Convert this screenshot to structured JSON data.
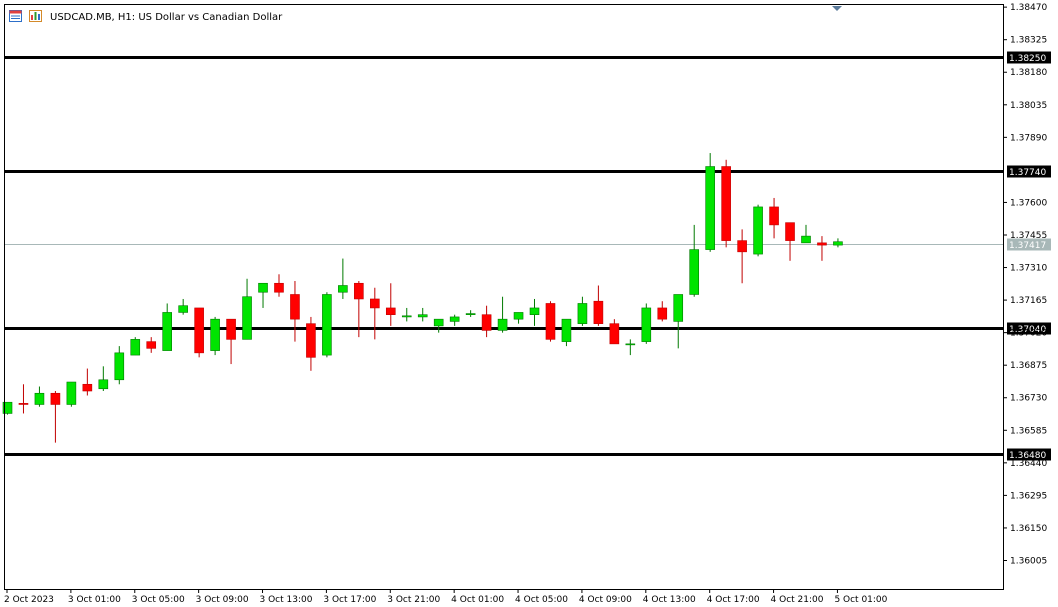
{
  "header": {
    "symbol_text": "USDCAD.MB, H1:  US Dollar vs Canadian Dollar"
  },
  "colors": {
    "bull": "#00e400",
    "bear": "#ff0000",
    "bull_wick": "#007a00",
    "bear_wick": "#c00000",
    "axis": "#000000",
    "current_line": "#a8b8b8",
    "level_line": "#000000"
  },
  "chart_data": {
    "type": "candlestick",
    "symbol": "USDCAD.MB",
    "timeframe": "H1",
    "description": "US Dollar vs Canadian Dollar",
    "ylim": [
      1.35878,
      1.38484
    ],
    "y_ticks": [
      "1.38470",
      "1.38325",
      "1.38180",
      "1.38035",
      "1.37890",
      "1.37600",
      "1.37455",
      "1.37310",
      "1.37165",
      "1.37020",
      "1.36875",
      "1.36730",
      "1.36585",
      "1.36440",
      "1.36295",
      "1.36150",
      "1.36005"
    ],
    "x_ticks": [
      {
        "label": "2 Oct 2023",
        "bar": 0
      },
      {
        "label": "3 Oct 01:00",
        "bar": 4
      },
      {
        "label": "3 Oct 05:00",
        "bar": 8
      },
      {
        "label": "3 Oct 09:00",
        "bar": 12
      },
      {
        "label": "3 Oct 13:00",
        "bar": 16
      },
      {
        "label": "3 Oct 17:00",
        "bar": 20
      },
      {
        "label": "3 Oct 21:00",
        "bar": 24
      },
      {
        "label": "4 Oct 01:00",
        "bar": 28
      },
      {
        "label": "4 Oct 05:00",
        "bar": 32
      },
      {
        "label": "4 Oct 09:00",
        "bar": 36
      },
      {
        "label": "4 Oct 13:00",
        "bar": 40
      },
      {
        "label": "4 Oct 17:00",
        "bar": 44
      },
      {
        "label": "4 Oct 21:00",
        "bar": 48
      },
      {
        "label": "5 Oct 01:00",
        "bar": 52
      }
    ],
    "levels": [
      {
        "price": 1.3825,
        "label": "1.38250"
      },
      {
        "price": 1.3774,
        "label": "1.37740"
      },
      {
        "price": 1.3704,
        "label": "1.37040"
      },
      {
        "price": 1.3648,
        "label": "1.36480"
      }
    ],
    "current_price": {
      "price": 1.37417,
      "label": "1.37417"
    },
    "candles": [
      {
        "o": 1.3666,
        "h": 1.367,
        "l": 1.36655,
        "c": 1.3671
      },
      {
        "o": 1.36705,
        "h": 1.3679,
        "l": 1.3666,
        "c": 1.367
      },
      {
        "o": 1.367,
        "h": 1.3678,
        "l": 1.3669,
        "c": 1.3675
      },
      {
        "o": 1.3675,
        "h": 1.3676,
        "l": 1.3653,
        "c": 1.367
      },
      {
        "o": 1.367,
        "h": 1.368,
        "l": 1.3669,
        "c": 1.368
      },
      {
        "o": 1.3679,
        "h": 1.3686,
        "l": 1.3674,
        "c": 1.3676
      },
      {
        "o": 1.3677,
        "h": 1.3687,
        "l": 1.3676,
        "c": 1.3681
      },
      {
        "o": 1.3681,
        "h": 1.3696,
        "l": 1.3679,
        "c": 1.3693
      },
      {
        "o": 1.3692,
        "h": 1.37,
        "l": 1.3692,
        "c": 1.3699
      },
      {
        "o": 1.3698,
        "h": 1.37,
        "l": 1.3693,
        "c": 1.3695
      },
      {
        "o": 1.3694,
        "h": 1.3715,
        "l": 1.3694,
        "c": 1.3711
      },
      {
        "o": 1.3711,
        "h": 1.3717,
        "l": 1.371,
        "c": 1.3714
      },
      {
        "o": 1.3713,
        "h": 1.3713,
        "l": 1.3691,
        "c": 1.3693
      },
      {
        "o": 1.3694,
        "h": 1.3709,
        "l": 1.3692,
        "c": 1.3708
      },
      {
        "o": 1.3708,
        "h": 1.3708,
        "l": 1.3688,
        "c": 1.3699
      },
      {
        "o": 1.3699,
        "h": 1.3726,
        "l": 1.3699,
        "c": 1.3718
      },
      {
        "o": 1.372,
        "h": 1.3724,
        "l": 1.3713,
        "c": 1.3724
      },
      {
        "o": 1.3724,
        "h": 1.3728,
        "l": 1.3718,
        "c": 1.372
      },
      {
        "o": 1.3719,
        "h": 1.3725,
        "l": 1.3698,
        "c": 1.3708
      },
      {
        "o": 1.3706,
        "h": 1.3709,
        "l": 1.3685,
        "c": 1.3691
      },
      {
        "o": 1.3692,
        "h": 1.372,
        "l": 1.3691,
        "c": 1.3719
      },
      {
        "o": 1.372,
        "h": 1.3735,
        "l": 1.3717,
        "c": 1.3723
      },
      {
        "o": 1.3724,
        "h": 1.3725,
        "l": 1.37,
        "c": 1.3717
      },
      {
        "o": 1.3717,
        "h": 1.3722,
        "l": 1.3699,
        "c": 1.3713
      },
      {
        "o": 1.3713,
        "h": 1.3724,
        "l": 1.3705,
        "c": 1.371
      },
      {
        "o": 1.3709,
        "h": 1.3713,
        "l": 1.3707,
        "c": 1.37095
      },
      {
        "o": 1.3709,
        "h": 1.3713,
        "l": 1.3707,
        "c": 1.371
      },
      {
        "o": 1.3705,
        "h": 1.3708,
        "l": 1.3702,
        "c": 1.3708
      },
      {
        "o": 1.3707,
        "h": 1.371,
        "l": 1.3705,
        "c": 1.3709
      },
      {
        "o": 1.371,
        "h": 1.3712,
        "l": 1.3709,
        "c": 1.37105
      },
      {
        "o": 1.371,
        "h": 1.3714,
        "l": 1.37,
        "c": 1.3703
      },
      {
        "o": 1.3703,
        "h": 1.3718,
        "l": 1.3702,
        "c": 1.3708
      },
      {
        "o": 1.3708,
        "h": 1.3711,
        "l": 1.3706,
        "c": 1.3711
      },
      {
        "o": 1.371,
        "h": 1.3717,
        "l": 1.3705,
        "c": 1.3713
      },
      {
        "o": 1.3715,
        "h": 1.3716,
        "l": 1.3698,
        "c": 1.3699
      },
      {
        "o": 1.3698,
        "h": 1.3708,
        "l": 1.3696,
        "c": 1.3708
      },
      {
        "o": 1.3706,
        "h": 1.3718,
        "l": 1.3705,
        "c": 1.3715
      },
      {
        "o": 1.3716,
        "h": 1.3723,
        "l": 1.3705,
        "c": 1.3706
      },
      {
        "o": 1.3706,
        "h": 1.3708,
        "l": 1.3697,
        "c": 1.3697
      },
      {
        "o": 1.3697,
        "h": 1.3699,
        "l": 1.3692,
        "c": 1.3697
      },
      {
        "o": 1.3698,
        "h": 1.3715,
        "l": 1.3697,
        "c": 1.3713
      },
      {
        "o": 1.3713,
        "h": 1.3716,
        "l": 1.3707,
        "c": 1.3708
      },
      {
        "o": 1.3707,
        "h": 1.3719,
        "l": 1.3695,
        "c": 1.3719
      },
      {
        "o": 1.3719,
        "h": 1.375,
        "l": 1.3718,
        "c": 1.3739
      },
      {
        "o": 1.3739,
        "h": 1.3782,
        "l": 1.3738,
        "c": 1.3776
      },
      {
        "o": 1.3776,
        "h": 1.3779,
        "l": 1.374,
        "c": 1.3743
      },
      {
        "o": 1.3743,
        "h": 1.3748,
        "l": 1.3724,
        "c": 1.3738
      },
      {
        "o": 1.3737,
        "h": 1.3759,
        "l": 1.3736,
        "c": 1.3758
      },
      {
        "o": 1.3758,
        "h": 1.3762,
        "l": 1.3744,
        "c": 1.375
      },
      {
        "o": 1.3751,
        "h": 1.3751,
        "l": 1.3734,
        "c": 1.3743
      },
      {
        "o": 1.3742,
        "h": 1.375,
        "l": 1.3742,
        "c": 1.3745
      },
      {
        "o": 1.3742,
        "h": 1.3745,
        "l": 1.3734,
        "c": 1.3741
      },
      {
        "o": 1.3741,
        "h": 1.3744,
        "l": 1.374,
        "c": 1.37425
      }
    ]
  }
}
